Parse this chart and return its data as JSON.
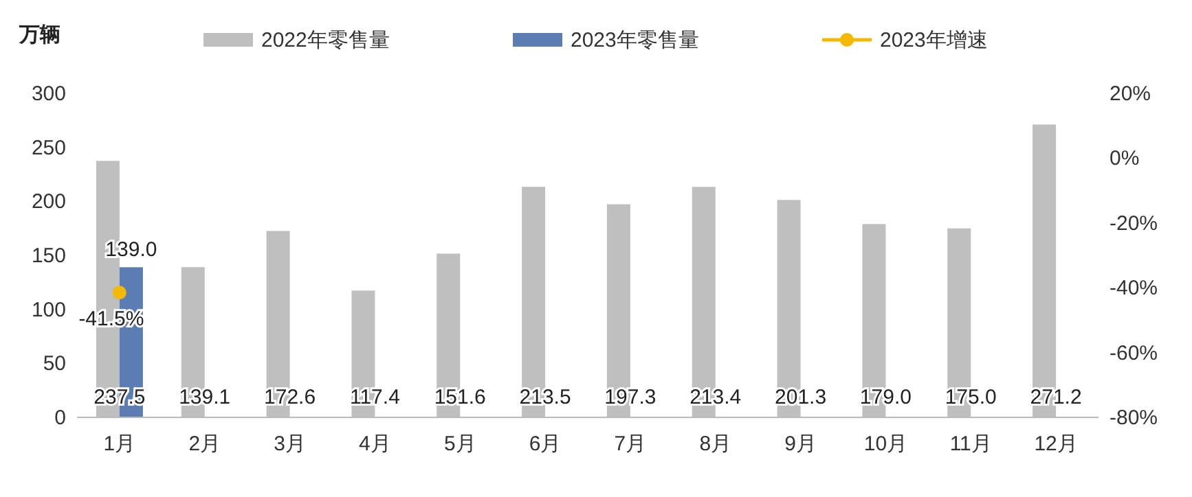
{
  "chart_data": {
    "type": "bar",
    "ylabel": "万辆",
    "categories": [
      "1月",
      "2月",
      "3月",
      "4月",
      "5月",
      "6月",
      "7月",
      "8月",
      "9月",
      "10月",
      "11月",
      "12月"
    ],
    "series": [
      {
        "name": "2022年零售量",
        "color": "#bfbfbf",
        "values": [
          237.5,
          139.1,
          172.6,
          117.4,
          151.6,
          213.5,
          197.3,
          213.4,
          201.3,
          179.0,
          175.0,
          271.2
        ],
        "value_labels": [
          "237.5",
          "139.1",
          "172.6",
          "117.4",
          "151.6",
          "213.5",
          "197.3",
          "213.4",
          "201.3",
          "179.0",
          "175.0",
          "271.2"
        ]
      },
      {
        "name": "2023年零售量",
        "color": "#5b7db4",
        "values": [
          139.0,
          null,
          null,
          null,
          null,
          null,
          null,
          null,
          null,
          null,
          null,
          null
        ],
        "value_labels": [
          "139.0",
          null,
          null,
          null,
          null,
          null,
          null,
          null,
          null,
          null,
          null,
          null
        ]
      },
      {
        "name": "2023年增速",
        "type": "line",
        "axis": "y2",
        "color": "#f5b800",
        "marker": "circle",
        "values": [
          -41.5,
          null,
          null,
          null,
          null,
          null,
          null,
          null,
          null,
          null,
          null,
          null
        ],
        "value_labels": [
          "-41.5%",
          null,
          null,
          null,
          null,
          null,
          null,
          null,
          null,
          null,
          null,
          null
        ]
      }
    ],
    "ylim": [
      0,
      300
    ],
    "yticks": [
      0,
      50,
      100,
      150,
      200,
      250,
      300
    ],
    "y2lim": [
      -80,
      20
    ],
    "y2ticks": [
      {
        "value": -80,
        "label": "-80%"
      },
      {
        "value": -60,
        "label": "-60%"
      },
      {
        "value": -40,
        "label": "-40%"
      },
      {
        "value": -20,
        "label": "-20%"
      },
      {
        "value": 0,
        "label": "0%"
      },
      {
        "value": 20,
        "label": "20%"
      }
    ],
    "legend": "top",
    "grid": false
  }
}
